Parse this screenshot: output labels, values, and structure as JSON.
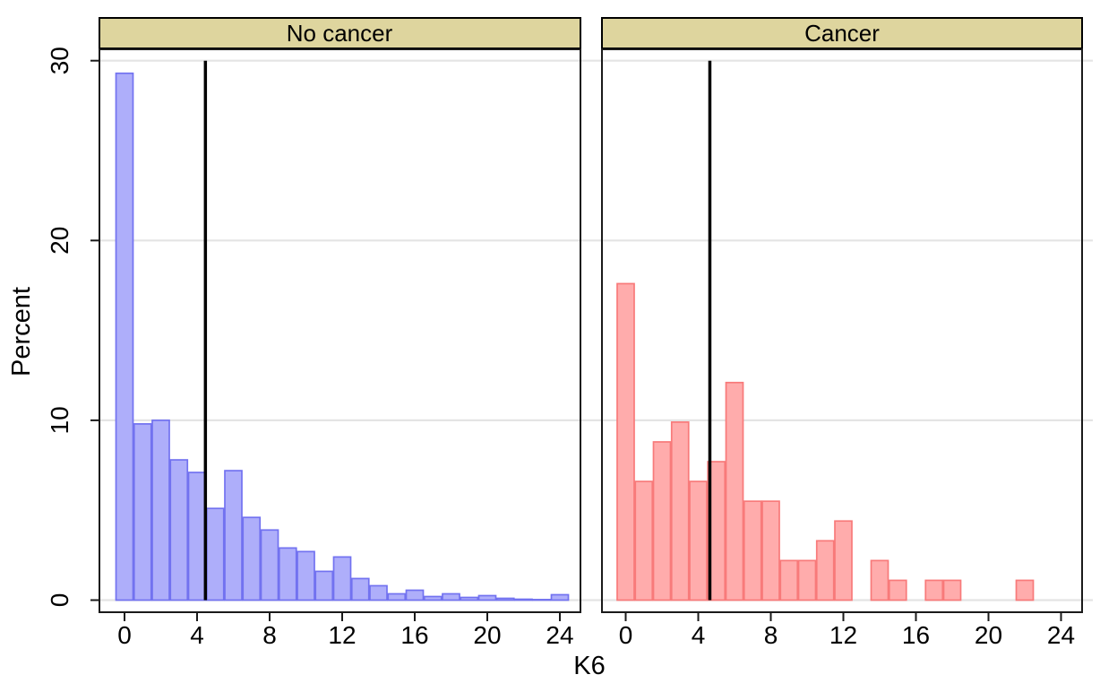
{
  "chart_data": {
    "type": "bar",
    "subtype": "histogram-by-panel",
    "title": "",
    "xlabel": "K6",
    "ylabel": "Percent",
    "x": [
      0,
      1,
      2,
      3,
      4,
      5,
      6,
      7,
      8,
      9,
      10,
      11,
      12,
      13,
      14,
      15,
      16,
      17,
      18,
      19,
      20,
      21,
      22,
      23,
      24
    ],
    "bin_width": 1,
    "x_ticks": [
      0,
      4,
      8,
      12,
      16,
      20,
      24
    ],
    "y_ticks": [
      0,
      10,
      20,
      30
    ],
    "xlim": [
      -1.4,
      25.1
    ],
    "ylim": [
      0,
      30.6
    ],
    "grid": true,
    "legend": "none",
    "panels": [
      {
        "title": "No cancer",
        "bar_fill": "#aeaefa",
        "bar_stroke": "#7272f0",
        "vline_x": 4.46,
        "values": [
          29.3,
          9.8,
          10.0,
          7.8,
          7.1,
          5.1,
          7.2,
          4.6,
          3.9,
          2.9,
          2.7,
          1.6,
          2.4,
          1.2,
          0.8,
          0.35,
          0.55,
          0.2,
          0.35,
          0.15,
          0.25,
          0.1,
          0.05,
          0.03,
          0.3
        ]
      },
      {
        "title": "Cancer",
        "bar_fill": "#ffacac",
        "bar_stroke": "#f87a7a",
        "vline_x": 4.64,
        "values": [
          17.6,
          6.6,
          8.8,
          9.9,
          6.6,
          7.7,
          12.1,
          5.5,
          5.5,
          2.2,
          2.2,
          3.3,
          4.4,
          0,
          2.2,
          1.1,
          0,
          1.1,
          1.1,
          0,
          0,
          0,
          1.1,
          0,
          0
        ]
      }
    ],
    "colors": {
      "panel_title_bg": "#ded59e",
      "panel_title_border": "#000000",
      "gridline": "#e4e4e4",
      "frame": "#1a1a1a",
      "vline": "#000000",
      "background": "#ffffff"
    }
  }
}
